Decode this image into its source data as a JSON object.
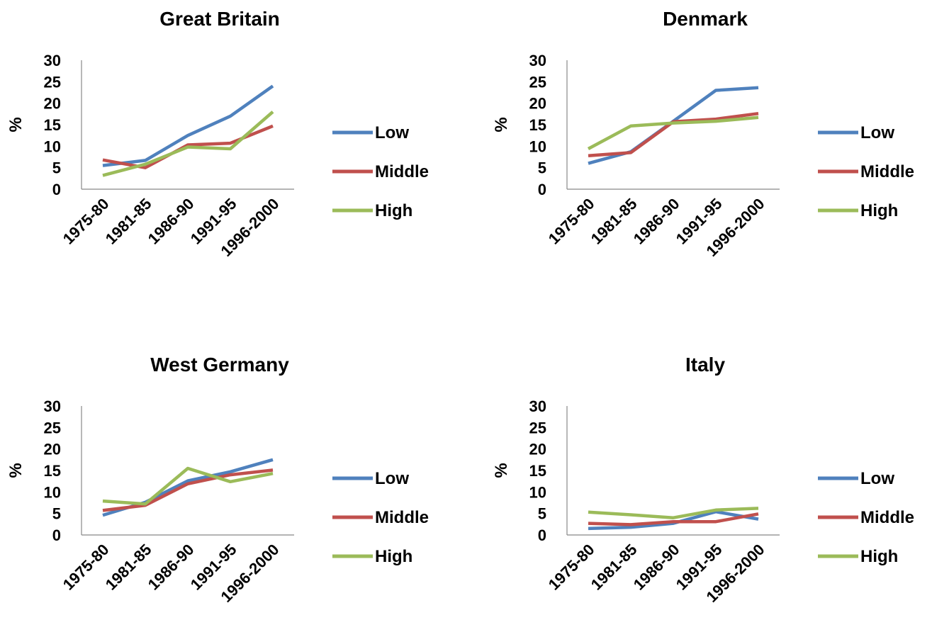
{
  "chart_data": [
    {
      "type": "line",
      "title": "Great Britain",
      "ylabel": "%",
      "ylim": [
        0,
        30
      ],
      "yticks": [
        0,
        5,
        10,
        15,
        20,
        25,
        30
      ],
      "categories": [
        "1975-80",
        "1981-85",
        "1986-90",
        "1991-95",
        "1996-2000"
      ],
      "grid": false,
      "legend": "right",
      "series": [
        {
          "name": "Low",
          "color": "#4F81BD",
          "values": [
            5.5,
            6.7,
            12.5,
            17,
            24
          ]
        },
        {
          "name": "Middle",
          "color": "#C0504D",
          "values": [
            6.8,
            5,
            10.3,
            10.7,
            14.7
          ]
        },
        {
          "name": "High",
          "color": "#9BBB59",
          "values": [
            3.2,
            5.8,
            9.8,
            9.4,
            18
          ]
        }
      ]
    },
    {
      "type": "line",
      "title": "Denmark",
      "ylabel": "%",
      "ylim": [
        0,
        30
      ],
      "yticks": [
        0,
        5,
        10,
        15,
        20,
        25,
        30
      ],
      "categories": [
        "1975-80",
        "1981-85",
        "1986-90",
        "1991-95",
        "1996-2000"
      ],
      "grid": false,
      "legend": "right",
      "series": [
        {
          "name": "Low",
          "color": "#4F81BD",
          "values": [
            6,
            8.7,
            15.8,
            23,
            23.6
          ]
        },
        {
          "name": "Middle",
          "color": "#C0504D",
          "values": [
            7.8,
            8.5,
            15.7,
            16.3,
            17.6
          ]
        },
        {
          "name": "High",
          "color": "#9BBB59",
          "values": [
            9.4,
            14.7,
            15.4,
            15.8,
            16.7
          ]
        }
      ]
    },
    {
      "type": "line",
      "title": "West Germany",
      "ylabel": "%",
      "ylim": [
        0,
        30
      ],
      "yticks": [
        0,
        5,
        10,
        15,
        20,
        25,
        30
      ],
      "categories": [
        "1975-80",
        "1981-85",
        "1986-90",
        "1991-95",
        "1996-2000"
      ],
      "grid": false,
      "legend": "right",
      "series": [
        {
          "name": "Low",
          "color": "#4F81BD",
          "values": [
            4.6,
            7.6,
            12.6,
            14.7,
            17.5
          ]
        },
        {
          "name": "Middle",
          "color": "#C0504D",
          "values": [
            5.7,
            6.9,
            11.9,
            14,
            15.1
          ]
        },
        {
          "name": "High",
          "color": "#9BBB59",
          "values": [
            7.9,
            7.2,
            15.5,
            12.4,
            14.3
          ]
        }
      ]
    },
    {
      "type": "line",
      "title": "Italy",
      "ylabel": "%",
      "ylim": [
        0,
        30
      ],
      "yticks": [
        0,
        5,
        10,
        15,
        20,
        25,
        30
      ],
      "categories": [
        "1975-80",
        "1981-85",
        "1986-90",
        "1991-95",
        "1996-2000"
      ],
      "grid": false,
      "legend": "right",
      "series": [
        {
          "name": "Low",
          "color": "#4F81BD",
          "values": [
            1.5,
            1.8,
            2.7,
            5.4,
            3.7
          ]
        },
        {
          "name": "Middle",
          "color": "#C0504D",
          "values": [
            2.7,
            2.4,
            3.1,
            3.1,
            4.9
          ]
        },
        {
          "name": "High",
          "color": "#9BBB59",
          "values": [
            5.3,
            4.7,
            4,
            5.8,
            6.2
          ]
        }
      ]
    }
  ]
}
